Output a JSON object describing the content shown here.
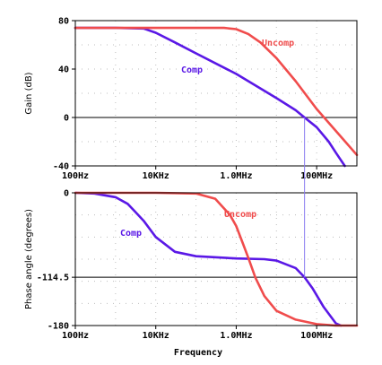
{
  "colors": {
    "comp": "#5a18e6",
    "uncomp": "#f04c4c",
    "marker": "#8a7cf0",
    "axis": "#000000",
    "grid": "#bdbdbd"
  },
  "chart_data": [
    {
      "type": "line",
      "ylabel": "Gain (dB)",
      "xscale": "log",
      "xlim": [
        100,
        1000000000
      ],
      "ylim": [
        -40,
        80
      ],
      "x_ticks": [
        100,
        10000,
        1000000,
        100000000
      ],
      "x_tick_labels": [
        "100Hz",
        "10KHz",
        "1.0MHz",
        "100MHz"
      ],
      "y_ticks": [
        80,
        40,
        0,
        -40
      ],
      "y_tick_labels": [
        "80",
        "40",
        "0",
        "-40"
      ],
      "reference_lines": [
        {
          "axis": "y",
          "value": 0
        }
      ],
      "grid": "dotted",
      "series": [
        {
          "name": "Comp",
          "color_key": "comp",
          "x": [
            100,
            1000,
            5000,
            10000,
            30000,
            100000,
            1000000,
            10000000,
            30000000,
            50000000,
            100000000,
            200000000,
            300000000,
            500000000
          ],
          "y": [
            74,
            74,
            73.5,
            70,
            62,
            53,
            36,
            16,
            6,
            0,
            -8,
            -20,
            -29,
            -40
          ]
        },
        {
          "name": "Uncomp",
          "color_key": "uncomp",
          "x": [
            100,
            10000,
            500000,
            1000000,
            2000000,
            4000000,
            10000000,
            30000000,
            100000000,
            1000000000
          ],
          "y": [
            74,
            74,
            74,
            73,
            69,
            62,
            49,
            30,
            7,
            -31
          ]
        }
      ]
    },
    {
      "type": "line",
      "ylabel": "Phase angle (degrees)",
      "xlabel": "Frequency",
      "xscale": "log",
      "xlim": [
        100,
        1000000000
      ],
      "ylim": [
        -180,
        0
      ],
      "x_ticks": [
        100,
        10000,
        1000000,
        100000000
      ],
      "x_tick_labels": [
        "100Hz",
        "10KHz",
        "1.0MHz",
        "100MHz"
      ],
      "y_ticks": [
        0,
        -114.5,
        -180
      ],
      "y_tick_labels": [
        "0",
        "-114.5",
        "-180"
      ],
      "reference_lines": [
        {
          "axis": "y",
          "value": -114.5
        }
      ],
      "grid": "dotted",
      "series": [
        {
          "name": "Comp",
          "color_key": "comp",
          "x": [
            100,
            300,
            1000,
            2000,
            3000,
            5000,
            10000,
            30000,
            100000,
            1000000,
            5000000,
            10000000,
            30000000,
            50000000,
            80000000,
            150000000,
            300000000,
            400000000
          ],
          "y": [
            0,
            -1,
            -6,
            -15,
            -25,
            -38,
            -60,
            -80,
            -86,
            -89,
            -90,
            -92,
            -102,
            -114.5,
            -130,
            -155,
            -177,
            -180
          ]
        },
        {
          "name": "Uncomp",
          "color_key": "uncomp",
          "x": [
            100,
            10000,
            100000,
            300000,
            700000,
            1000000,
            1500000,
            2000000,
            3000000,
            5000000,
            10000000,
            30000000,
            100000000,
            300000000,
            1000000000
          ],
          "y": [
            0,
            0,
            -1,
            -8,
            -30,
            -45,
            -70,
            -88,
            -115,
            -140,
            -160,
            -172,
            -178,
            -180,
            -180
          ]
        }
      ]
    }
  ],
  "annotations": {
    "gain_uncomp": "Uncomp",
    "gain_comp": "Comp",
    "phase_uncomp": "Uncomp",
    "phase_comp": "Comp",
    "crossover_marker_freq": 50000000
  }
}
